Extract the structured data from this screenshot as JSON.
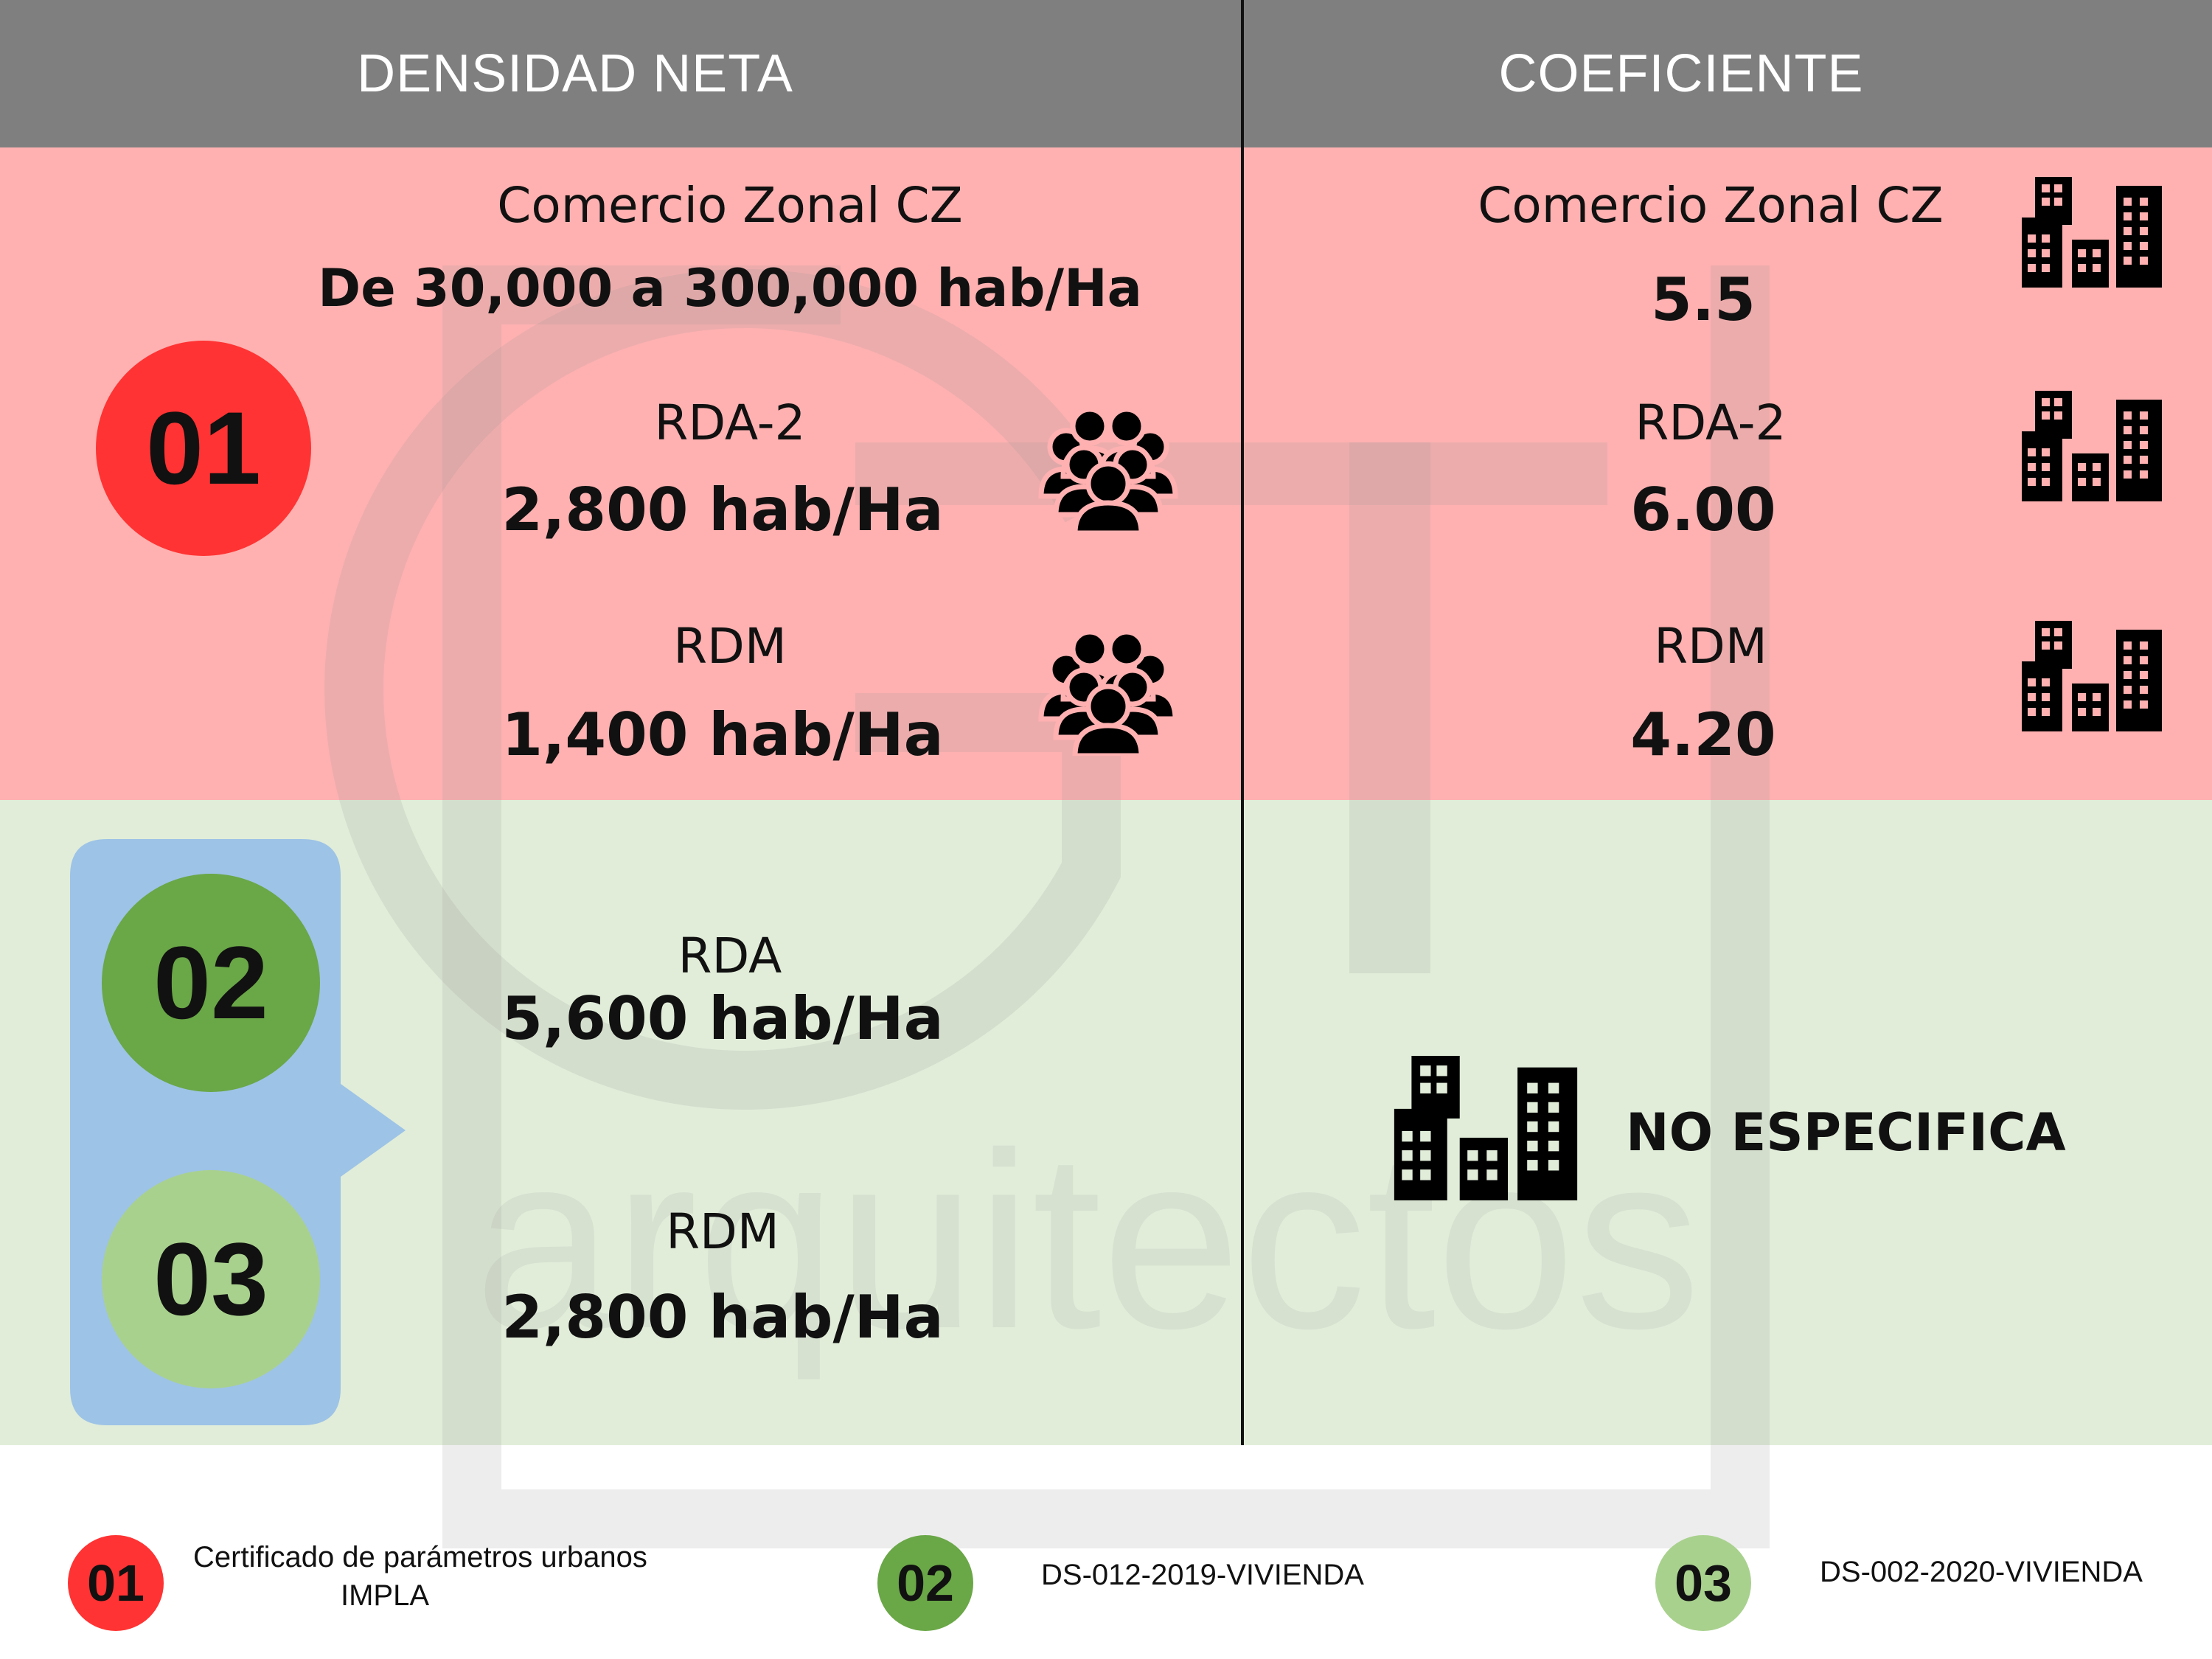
{
  "header": {
    "left_title": "DENSIDAD NETA",
    "right_title": "COEFICIENTE"
  },
  "section_01": {
    "badge": "01",
    "density": [
      {
        "label": "Comercio Zonal CZ",
        "value": "De 30,000 a 300,000 hab/Ha"
      },
      {
        "label": "RDA-2",
        "value": "2,800 hab/Ha"
      },
      {
        "label": "RDM",
        "value": "1,400 hab/Ha"
      }
    ],
    "coefficient": [
      {
        "label": "Comercio Zonal CZ",
        "value": "5.5"
      },
      {
        "label": "RDA-2",
        "value": "6.00"
      },
      {
        "label": "RDM",
        "value": "4.20"
      }
    ]
  },
  "section_02_03": {
    "badges": [
      "02",
      "03"
    ],
    "density": [
      {
        "label": "RDA",
        "value": "5,600 hab/Ha"
      },
      {
        "label": "RDM",
        "value": "2,800 hab/Ha"
      }
    ],
    "coefficient_note": "NO ESPECIFICA"
  },
  "watermark": {
    "text": "arquitectos",
    "letters": "GT"
  },
  "legend": [
    {
      "badge": "01",
      "text_line1": "Certificado de parámetros urbanos",
      "text_line2": "IMPLA"
    },
    {
      "badge": "02",
      "text_line1": "DS-012-2019-VIVIENDA"
    },
    {
      "badge": "03",
      "text_line1": "DS-002-2020-VIVIENDA"
    }
  ],
  "colors": {
    "header": "#7f7f7f",
    "band_red": "#ffb1b1",
    "band_green": "#e1edd9",
    "badge_01": "#ff3333",
    "badge_02": "#6aa747",
    "badge_03": "#a9d18e",
    "callout": "#9dc3e6"
  },
  "icons": [
    "people-icon",
    "buildings-icon"
  ]
}
